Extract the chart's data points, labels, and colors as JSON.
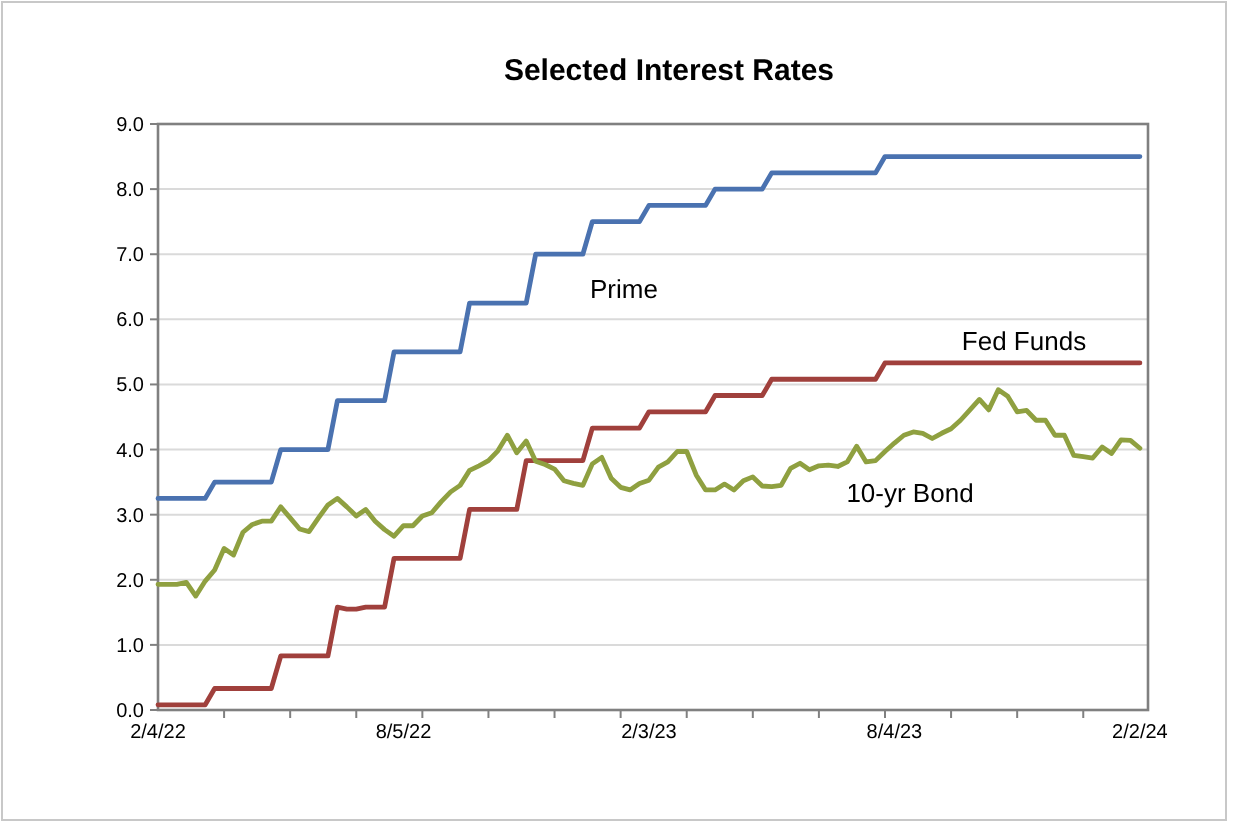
{
  "chart_data": {
    "type": "line",
    "title": "Selected Interest Rates",
    "x": [
      "2022-02-04",
      "2022-02-11",
      "2022-02-18",
      "2022-02-25",
      "2022-03-04",
      "2022-03-11",
      "2022-03-18",
      "2022-03-25",
      "2022-04-01",
      "2022-04-08",
      "2022-04-15",
      "2022-04-22",
      "2022-04-29",
      "2022-05-06",
      "2022-05-13",
      "2022-05-20",
      "2022-05-27",
      "2022-06-03",
      "2022-06-10",
      "2022-06-17",
      "2022-06-24",
      "2022-07-01",
      "2022-07-08",
      "2022-07-15",
      "2022-07-22",
      "2022-07-29",
      "2022-08-05",
      "2022-08-12",
      "2022-08-19",
      "2022-08-26",
      "2022-09-02",
      "2022-09-09",
      "2022-09-16",
      "2022-09-23",
      "2022-09-30",
      "2022-10-07",
      "2022-10-14",
      "2022-10-21",
      "2022-10-28",
      "2022-11-04",
      "2022-11-11",
      "2022-11-18",
      "2022-11-25",
      "2022-12-02",
      "2022-12-09",
      "2022-12-16",
      "2022-12-23",
      "2022-12-30",
      "2023-01-06",
      "2023-01-13",
      "2023-01-20",
      "2023-01-27",
      "2023-02-03",
      "2023-02-10",
      "2023-02-17",
      "2023-02-24",
      "2023-03-03",
      "2023-03-10",
      "2023-03-17",
      "2023-03-24",
      "2023-03-31",
      "2023-04-07",
      "2023-04-14",
      "2023-04-21",
      "2023-04-28",
      "2023-05-05",
      "2023-05-12",
      "2023-05-19",
      "2023-05-26",
      "2023-06-02",
      "2023-06-09",
      "2023-06-16",
      "2023-06-23",
      "2023-06-30",
      "2023-07-07",
      "2023-07-14",
      "2023-07-21",
      "2023-07-28",
      "2023-08-04",
      "2023-08-11",
      "2023-08-18",
      "2023-08-25",
      "2023-09-01",
      "2023-09-08",
      "2023-09-15",
      "2023-09-22",
      "2023-09-29",
      "2023-10-06",
      "2023-10-13",
      "2023-10-20",
      "2023-10-27",
      "2023-11-03",
      "2023-11-10",
      "2023-11-17",
      "2023-11-24",
      "2023-12-01",
      "2023-12-08",
      "2023-12-15",
      "2023-12-22",
      "2023-12-29",
      "2024-01-05",
      "2024-01-12",
      "2024-01-19",
      "2024-01-26",
      "2024-02-02"
    ],
    "series": [
      {
        "name": "Prime",
        "color": "#4a72b0",
        "values": [
          3.25,
          3.25,
          3.25,
          3.25,
          3.25,
          3.25,
          3.5,
          3.5,
          3.5,
          3.5,
          3.5,
          3.5,
          3.5,
          4.0,
          4.0,
          4.0,
          4.0,
          4.0,
          4.0,
          4.75,
          4.75,
          4.75,
          4.75,
          4.75,
          4.75,
          5.5,
          5.5,
          5.5,
          5.5,
          5.5,
          5.5,
          5.5,
          5.5,
          6.25,
          6.25,
          6.25,
          6.25,
          6.25,
          6.25,
          6.25,
          7.0,
          7.0,
          7.0,
          7.0,
          7.0,
          7.0,
          7.5,
          7.5,
          7.5,
          7.5,
          7.5,
          7.5,
          7.75,
          7.75,
          7.75,
          7.75,
          7.75,
          7.75,
          7.75,
          8.0,
          8.0,
          8.0,
          8.0,
          8.0,
          8.0,
          8.25,
          8.25,
          8.25,
          8.25,
          8.25,
          8.25,
          8.25,
          8.25,
          8.25,
          8.25,
          8.25,
          8.25,
          8.5,
          8.5,
          8.5,
          8.5,
          8.5,
          8.5,
          8.5,
          8.5,
          8.5,
          8.5,
          8.5,
          8.5,
          8.5,
          8.5,
          8.5,
          8.5,
          8.5,
          8.5,
          8.5,
          8.5,
          8.5,
          8.5,
          8.5,
          8.5,
          8.5,
          8.5,
          8.5,
          8.5
        ]
      },
      {
        "name": "Fed Funds",
        "color": "#a0403c",
        "values": [
          0.08,
          0.08,
          0.08,
          0.08,
          0.08,
          0.08,
          0.33,
          0.33,
          0.33,
          0.33,
          0.33,
          0.33,
          0.33,
          0.83,
          0.83,
          0.83,
          0.83,
          0.83,
          0.83,
          1.58,
          1.55,
          1.55,
          1.58,
          1.58,
          1.58,
          2.33,
          2.33,
          2.33,
          2.33,
          2.33,
          2.33,
          2.33,
          2.33,
          3.08,
          3.08,
          3.08,
          3.08,
          3.08,
          3.08,
          3.83,
          3.83,
          3.83,
          3.83,
          3.83,
          3.83,
          3.83,
          4.33,
          4.33,
          4.33,
          4.33,
          4.33,
          4.33,
          4.58,
          4.58,
          4.58,
          4.58,
          4.58,
          4.58,
          4.58,
          4.83,
          4.83,
          4.83,
          4.83,
          4.83,
          4.83,
          5.08,
          5.08,
          5.08,
          5.08,
          5.08,
          5.08,
          5.08,
          5.08,
          5.08,
          5.08,
          5.08,
          5.08,
          5.33,
          5.33,
          5.33,
          5.33,
          5.33,
          5.33,
          5.33,
          5.33,
          5.33,
          5.33,
          5.33,
          5.33,
          5.33,
          5.33,
          5.33,
          5.33,
          5.33,
          5.33,
          5.33,
          5.33,
          5.33,
          5.33,
          5.33,
          5.33,
          5.33,
          5.33,
          5.33,
          5.33
        ]
      },
      {
        "name": "10-yr Bond",
        "color": "#8fa040",
        "values": [
          1.93,
          1.93,
          1.93,
          1.96,
          1.75,
          1.98,
          2.15,
          2.48,
          2.38,
          2.73,
          2.85,
          2.9,
          2.9,
          3.12,
          2.95,
          2.78,
          2.74,
          2.95,
          3.15,
          3.25,
          3.12,
          2.98,
          3.08,
          2.9,
          2.77,
          2.67,
          2.83,
          2.83,
          2.98,
          3.03,
          3.2,
          3.35,
          3.45,
          3.68,
          3.75,
          3.83,
          3.98,
          4.22,
          3.95,
          4.13,
          3.82,
          3.77,
          3.7,
          3.52,
          3.48,
          3.45,
          3.78,
          3.88,
          3.56,
          3.42,
          3.38,
          3.48,
          3.53,
          3.73,
          3.81,
          3.97,
          3.97,
          3.61,
          3.38,
          3.38,
          3.47,
          3.38,
          3.52,
          3.58,
          3.44,
          3.43,
          3.45,
          3.71,
          3.79,
          3.69,
          3.75,
          3.76,
          3.74,
          3.81,
          4.05,
          3.81,
          3.83,
          3.97,
          4.1,
          4.22,
          4.27,
          4.25,
          4.17,
          4.25,
          4.32,
          4.45,
          4.61,
          4.77,
          4.61,
          4.92,
          4.82,
          4.58,
          4.6,
          4.45,
          4.45,
          4.22,
          4.22,
          3.91,
          3.89,
          3.87,
          4.04,
          3.94,
          4.15,
          4.14,
          4.02
        ]
      }
    ],
    "xlim": [
      "2022-02-04",
      "2024-02-08"
    ],
    "xticks": [
      {
        "value": "2022-02-04",
        "label": "2/4/22"
      },
      {
        "value": "2022-08-05",
        "label": "8/5/22"
      },
      {
        "value": "2023-02-03",
        "label": "2/3/23"
      },
      {
        "value": "2023-08-04",
        "label": "8/4/23"
      },
      {
        "value": "2024-02-02",
        "label": "2/2/24"
      },
      {
        "value": "2022-03-25",
        "label": null
      },
      {
        "value": "2022-05-13",
        "label": null
      },
      {
        "value": "2022-07-01",
        "label": null
      },
      {
        "value": "2022-08-19",
        "label": null
      },
      {
        "value": "2022-10-07",
        "label": null
      },
      {
        "value": "2022-11-25",
        "label": null
      },
      {
        "value": "2023-01-13",
        "label": null
      },
      {
        "value": "2023-03-03",
        "label": null
      },
      {
        "value": "2023-04-21",
        "label": null
      },
      {
        "value": "2023-06-09",
        "label": null
      },
      {
        "value": "2023-07-28",
        "label": null
      },
      {
        "value": "2023-09-15",
        "label": null
      },
      {
        "value": "2023-11-03",
        "label": null
      },
      {
        "value": "2023-12-22",
        "label": null
      }
    ],
    "ylim": [
      0,
      9
    ],
    "yticks": [
      {
        "value": 0,
        "label": "0.0"
      },
      {
        "value": 1,
        "label": "1.0"
      },
      {
        "value": 2,
        "label": "2.0"
      },
      {
        "value": 3,
        "label": "3.0"
      },
      {
        "value": 4,
        "label": "4.0"
      },
      {
        "value": 5,
        "label": "5.0"
      },
      {
        "value": 6,
        "label": "6.0"
      },
      {
        "value": 7,
        "label": "7.0"
      },
      {
        "value": 8,
        "label": "8.0"
      },
      {
        "value": 9,
        "label": "9.0"
      }
    ],
    "grid": "y",
    "legend": false,
    "marker": "none",
    "line_style": "solid"
  }
}
